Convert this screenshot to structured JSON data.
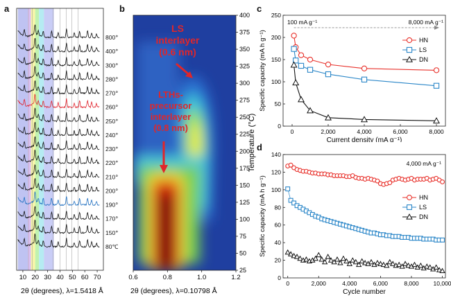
{
  "panels": {
    "a": {
      "letter": "a",
      "xlabel_main": "2θ (degrees), ",
      "xlabel_lambda": "λ=1.5418 Å",
      "xticks": [
        10,
        20,
        30,
        40,
        50,
        60,
        70
      ],
      "temperatures": [
        "800℃",
        "400℃",
        "300℃",
        "280℃",
        "270℃",
        "260℃",
        "250℃",
        "240℃",
        "230℃",
        "220℃",
        "210℃",
        "200℃",
        "190℃",
        "170℃",
        "150℃",
        "80℃"
      ],
      "highlight_colors": {
        "260℃": "#e0202a",
        "190℃": "#1f6fc0"
      },
      "bands": [
        {
          "from": 6,
          "to": 14,
          "color": "#b4b8f0"
        },
        {
          "from": 14,
          "to": 16.5,
          "color": "#d6b4f0"
        },
        {
          "from": 16.5,
          "to": 20,
          "color": "#f4f49a"
        },
        {
          "from": 20,
          "to": 23,
          "color": "#b6f0a0"
        },
        {
          "from": 23,
          "to": 27,
          "color": "#a8e8f0"
        },
        {
          "from": 27,
          "to": 35,
          "color": "#c0c4f4"
        }
      ]
    },
    "b": {
      "letter": "b",
      "xlabel_main": "2θ (degrees), ",
      "xlabel_lambda": "λ=0.10798 Å",
      "ylabel": "Temperature (°C)",
      "xticks": [
        "0.6",
        "0.8",
        "1.0",
        "1.2"
      ],
      "yticks": [
        25,
        50,
        75,
        100,
        125,
        150,
        175,
        200,
        225,
        250,
        275,
        300,
        325,
        350,
        375,
        400
      ],
      "annotation_ls": [
        "LS",
        "interlayer",
        "(0.6 nm)"
      ],
      "annotation_lths": [
        "LTHs-",
        "precursor",
        "interlayer",
        "(0.8 nm)"
      ]
    },
    "c": {
      "letter": "c",
      "xlabel": "Current density (mA g⁻¹)",
      "ylabel": "Specific capacity (mA h g⁻¹)",
      "label_left": "100 mA g⁻¹",
      "label_right": "8,000 mA g⁻¹",
      "xticks": [
        "0",
        "2,000",
        "4,000",
        "6,000",
        "8,000"
      ],
      "yticks": [
        "0",
        "50",
        "100",
        "150",
        "200",
        "250"
      ]
    },
    "d": {
      "letter": "d",
      "xlabel": "Cycle number",
      "ylabel": "Specific capacity (mA h g⁻¹)",
      "label_rate": "4,000 mA g⁻¹",
      "xticks": [
        "0",
        "2,000",
        "4,000",
        "6,000",
        "8,000",
        "10,000"
      ],
      "yticks": [
        "0",
        "20",
        "40",
        "60",
        "80",
        "100",
        "120",
        "140"
      ]
    }
  },
  "chart_data": [
    {
      "panel": "a",
      "type": "line",
      "xlabel": "2θ (degrees), λ=1.5418 Å",
      "xlim": [
        5,
        75
      ],
      "series_names": [
        "800℃",
        "400℃",
        "300℃",
        "280℃",
        "270℃",
        "260℃",
        "250℃",
        "240℃",
        "230℃",
        "220℃",
        "210℃",
        "200℃",
        "190℃",
        "170℃",
        "150℃",
        "80℃"
      ]
    },
    {
      "panel": "b",
      "type": "heatmap",
      "xlabel": "2θ (degrees), λ=0.10798 Å",
      "ylabel": "Temperature (°C)",
      "xlim": [
        0.6,
        1.2
      ],
      "ylim": [
        25,
        400
      ]
    },
    {
      "panel": "c",
      "type": "line",
      "xlabel": "Current density (mA g⁻¹)",
      "ylabel": "Specific capacity (mA h g⁻¹)",
      "xlim": [
        -500,
        8500
      ],
      "ylim": [
        0,
        250
      ],
      "legend": "top-right",
      "x": [
        100,
        200,
        500,
        1000,
        2000,
        4000,
        8000
      ],
      "series": [
        {
          "name": "HN",
          "marker": "circle",
          "color": "#e8302a",
          "values": [
            204,
            178,
            160,
            150,
            139,
            130,
            126
          ]
        },
        {
          "name": "LS",
          "marker": "square",
          "color": "#2a86c8",
          "values": [
            174,
            148,
            136,
            127,
            117,
            105,
            91
          ]
        },
        {
          "name": "DN",
          "marker": "triangle",
          "color": "#111111",
          "values": [
            138,
            98,
            60,
            35,
            19,
            15,
            12
          ]
        }
      ]
    },
    {
      "panel": "d",
      "type": "line",
      "xlabel": "Cycle number",
      "ylabel": "Specific capacity (mA h g⁻¹)",
      "xlim": [
        -300,
        10200
      ],
      "ylim": [
        0,
        140
      ],
      "legend": "right",
      "x": [
        0,
        200,
        400,
        600,
        800,
        1000,
        1200,
        1400,
        1600,
        1800,
        2000,
        2200,
        2400,
        2600,
        2800,
        3000,
        3200,
        3400,
        3600,
        3800,
        4000,
        4200,
        4400,
        4600,
        4800,
        5000,
        5200,
        5400,
        5600,
        5800,
        6000,
        6200,
        6400,
        6600,
        6800,
        7000,
        7200,
        7400,
        7600,
        7800,
        8000,
        8200,
        8400,
        8600,
        8800,
        9000,
        9200,
        9400,
        9600,
        9800,
        10000
      ],
      "series": [
        {
          "name": "HN",
          "marker": "circle",
          "color": "#e8302a",
          "values": [
            127,
            128,
            125,
            123,
            122,
            121,
            121,
            120,
            119,
            119,
            118,
            118,
            118,
            117,
            117,
            116,
            116,
            116,
            116,
            115,
            115,
            116,
            114,
            113,
            113,
            112,
            113,
            112,
            111,
            110,
            107,
            106,
            107,
            108,
            111,
            112,
            113,
            112,
            111,
            112,
            113,
            111,
            112,
            112,
            112,
            113,
            111,
            112,
            113,
            111,
            109
          ]
        },
        {
          "name": "LS",
          "marker": "square",
          "color": "#2a86c8",
          "values": [
            101,
            88,
            85,
            82,
            80,
            78,
            76,
            74,
            72,
            70,
            69,
            67,
            66,
            65,
            64,
            63,
            62,
            61,
            60,
            59,
            58,
            57,
            56,
            55,
            54,
            53,
            52,
            51,
            51,
            50,
            49,
            49,
            48,
            48,
            47,
            47,
            47,
            46,
            46,
            46,
            45,
            45,
            45,
            45,
            44,
            44,
            44,
            44,
            43,
            43,
            43
          ]
        },
        {
          "name": "DN",
          "marker": "triangle",
          "color": "#111111",
          "values": [
            29,
            27,
            25,
            24,
            22,
            20,
            21,
            19,
            20,
            22,
            26,
            21,
            18,
            24,
            20,
            18,
            21,
            17,
            22,
            19,
            16,
            20,
            18,
            15,
            19,
            17,
            16,
            18,
            15,
            17,
            16,
            15,
            14,
            18,
            16,
            14,
            15,
            13,
            16,
            14,
            13,
            15,
            12,
            14,
            11,
            13,
            12,
            10,
            12,
            9,
            8
          ]
        }
      ]
    }
  ]
}
